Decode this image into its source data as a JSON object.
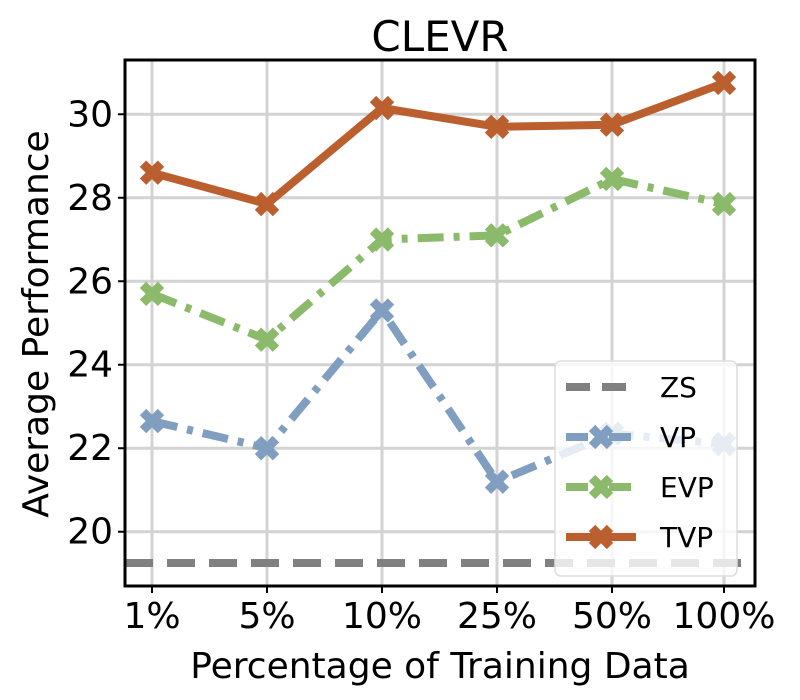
{
  "chart_data": {
    "type": "line",
    "title": "CLEVR",
    "xlabel": "Percentage of Training Data",
    "ylabel": "Average Performance",
    "categories": [
      "1%",
      "5%",
      "10%",
      "25%",
      "50%",
      "100%"
    ],
    "ylim": [
      18.7,
      31.3
    ],
    "yticks": [
      20,
      22,
      24,
      26,
      28,
      30
    ],
    "grid": true,
    "legend": {
      "placement": "bottom-right"
    },
    "series": [
      {
        "name": "ZS",
        "style": "dashed",
        "marker": "none",
        "color": "#808080",
        "values": [
          19.25,
          19.25,
          19.25,
          19.25,
          19.25,
          19.25
        ]
      },
      {
        "name": "VP",
        "style": "dashdot",
        "marker": "x",
        "color": "#7f9ec0",
        "values": [
          22.65,
          22.0,
          25.3,
          21.2,
          22.35,
          22.1
        ]
      },
      {
        "name": "EVP",
        "style": "dashdot",
        "marker": "x",
        "color": "#8bbb6a",
        "values": [
          25.7,
          24.6,
          27.0,
          27.1,
          28.45,
          27.85
        ]
      },
      {
        "name": "TVP",
        "style": "solid",
        "marker": "x",
        "color": "#bb5f2f",
        "values": [
          28.6,
          27.85,
          30.15,
          29.7,
          29.75,
          30.75
        ]
      }
    ]
  }
}
